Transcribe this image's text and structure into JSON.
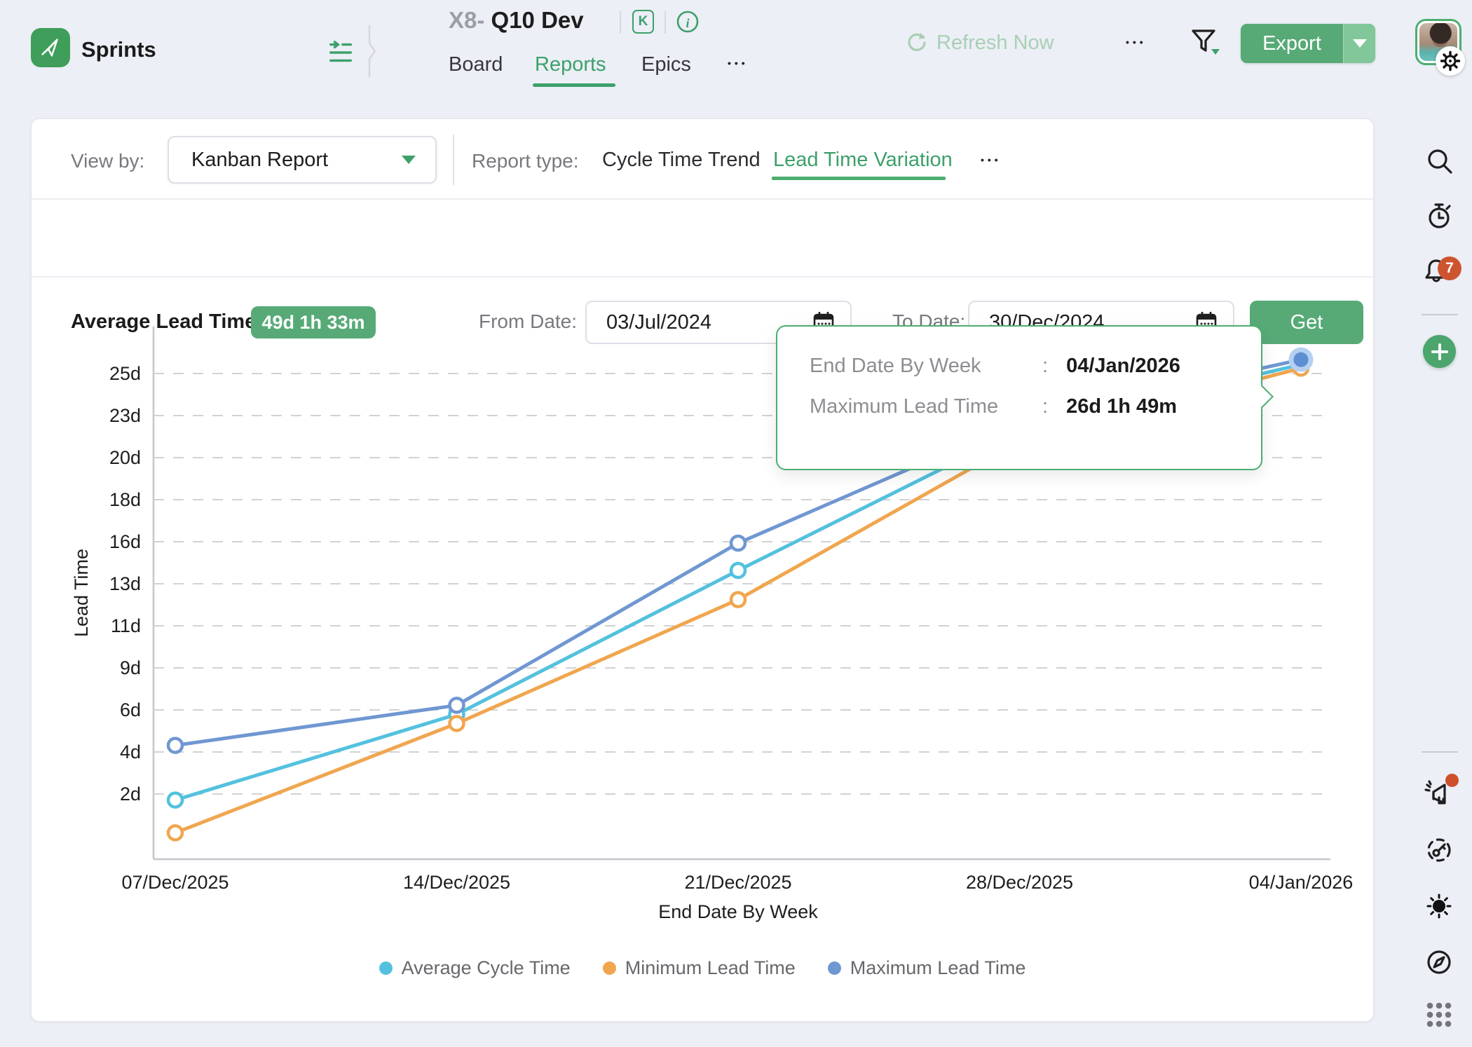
{
  "header": {
    "app_name": "Sprints",
    "project_prefix": "X8-",
    "project_name": "Q10 Dev",
    "board_badge": "K",
    "tabs": [
      {
        "label": "Board",
        "active": false
      },
      {
        "label": "Reports",
        "active": true
      },
      {
        "label": "Epics",
        "active": false
      }
    ],
    "tabs_more": "•••",
    "refresh_label": "Refresh Now",
    "overflow_more": "•••",
    "export_label": "Export"
  },
  "filter_bar": {
    "view_by_label": "View by:",
    "view_by_value": "Kanban Report",
    "report_type_label": "Report type:",
    "report_tabs": [
      {
        "label": "Cycle Time Trend",
        "active": false
      },
      {
        "label": "Lead Time Variation",
        "active": true
      }
    ],
    "report_tabs_more": "•••"
  },
  "summary_bar": {
    "average_lead_time_label": "Average Lead Time:",
    "average_lead_time_value": "49d 1h 33m",
    "from_date_label": "From Date:",
    "from_date_value": "03/Jul/2024",
    "to_date_label": "To Date:",
    "to_date_value": "30/Dec/2024",
    "get_label": "Get"
  },
  "tooltip": {
    "rows": [
      {
        "label": "End Date By Week",
        "value": "04/Jan/2026"
      },
      {
        "label": "Maximum Lead Time",
        "value": "26d 1h 49m"
      }
    ]
  },
  "chart_data": {
    "type": "line",
    "title": "",
    "xlabel": "End Date By Week",
    "ylabel": "Lead Time",
    "categories": [
      "07/Dec/2025",
      "14/Dec/2025",
      "21/Dec/2025",
      "28/Dec/2025",
      "04/Jan/2026"
    ],
    "y_ticks": [
      "2d",
      "4d",
      "6d",
      "9d",
      "11d",
      "13d",
      "16d",
      "18d",
      "20d",
      "23d",
      "25d"
    ],
    "grid": "horizontal-dashed",
    "legend_position": "bottom",
    "series": [
      {
        "name": "Average Cycle Time",
        "color": "#53C1DE",
        "values_days": [
          1.9,
          6.6,
          14.5,
          22.2,
          25.8
        ]
      },
      {
        "name": "Minimum Lead Time",
        "color": "#F0A64F",
        "values_days": [
          0.1,
          6.1,
          12.9,
          21.6,
          25.6
        ]
      },
      {
        "name": "Maximum Lead Time",
        "color": "#6F97D2",
        "values_days": [
          4.9,
          7.1,
          16.0,
          22.7,
          26.07
        ]
      }
    ],
    "highlight": {
      "series": "Maximum Lead Time",
      "category": "04/Jan/2026",
      "value_label": "26d 1h 49m",
      "halo_color": "#B5D0F0",
      "dot_color": "#5D8FD2"
    }
  },
  "sidebar": {
    "notifications_badge": "7",
    "icons_top": [
      "search",
      "timer",
      "notifications",
      "add"
    ],
    "icons_bottom": [
      "announcements",
      "access-key",
      "theme",
      "explore",
      "apps-grid"
    ]
  },
  "colors": {
    "accent_green": "#3DA06B",
    "button_green": "#57AA76",
    "button_green_light": "#82C79A",
    "badge_red": "#CE5430",
    "muted_refresh": "#A9CFB5"
  }
}
